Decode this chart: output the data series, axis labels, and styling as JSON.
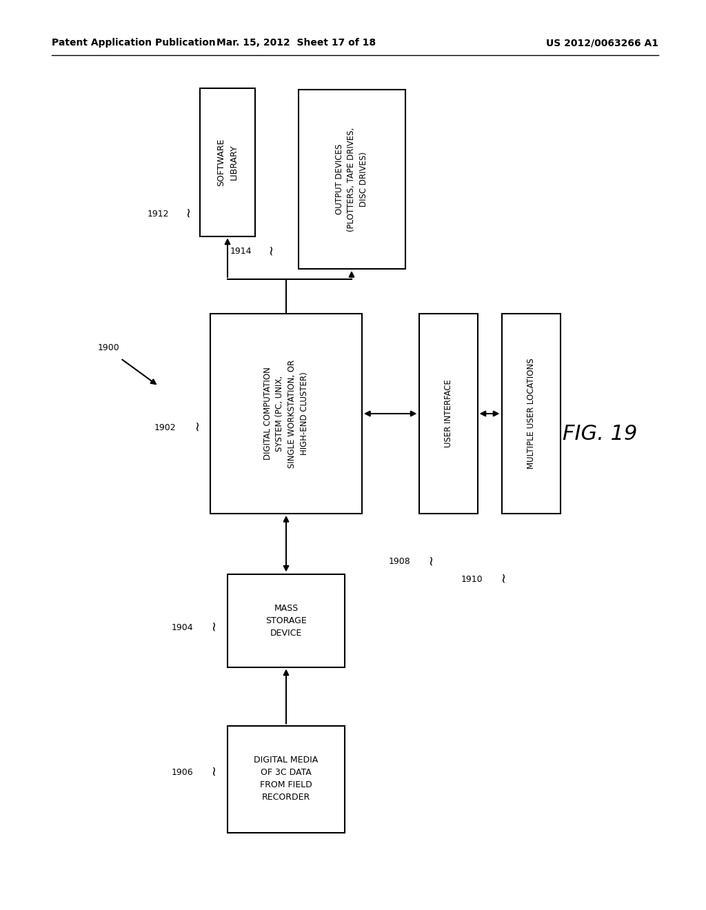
{
  "header_left": "Patent Application Publication",
  "header_mid": "Mar. 15, 2012  Sheet 17 of 18",
  "header_right": "US 2012/0063266 A1",
  "background_color": "#ffffff",
  "text_color": "#000000",
  "font_size_header": 10,
  "font_size_box": 8.5,
  "font_size_label": 9.0,
  "font_size_fig": 22,
  "sl_label": "SOFTWARE\nLIBRARY",
  "od_label": "OUTPUT DEVICES\n(PLOTTERS, TAPE DRIVES,\nDISC DRIVES)",
  "dc_label": "DIGITAL COMPUTATION\nSYSTEM (PC, UNIX,\nSINGLE WORKSTATION, OR\nHIGH-END CLUSTER)",
  "ui_label": "USER INTERFACE",
  "mu_label": "MULTIPLE USER LOCATIONS",
  "ms_label": "MASS\nSTORAGE\nDEVICE",
  "dm_label": "DIGITAL MEDIA\nOF 3C DATA\nFROM FIELD\nRECORDER",
  "ref_1912": "1912",
  "ref_1914": "1914",
  "ref_1902": "1902",
  "ref_1908": "1908",
  "ref_1910": "1910",
  "ref_1904": "1904",
  "ref_1906": "1906",
  "ref_1900": "1900",
  "fig_label": "FIG. 19"
}
